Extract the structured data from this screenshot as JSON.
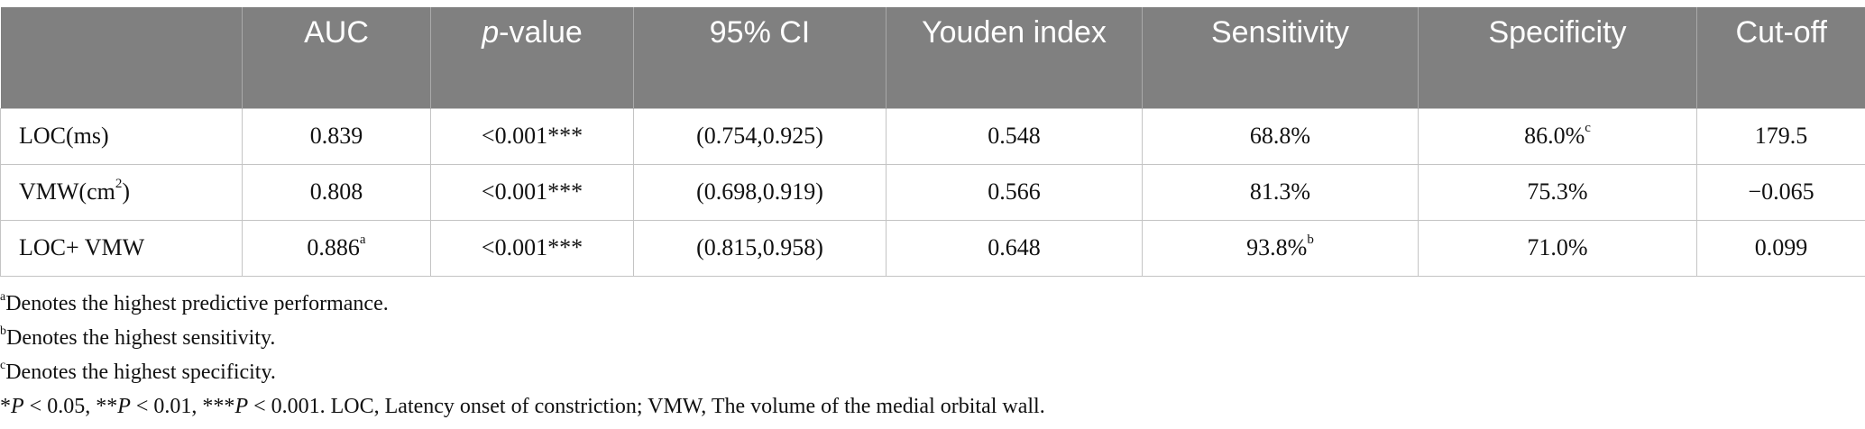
{
  "table": {
    "headers": [
      {
        "text": "",
        "italic_prefix": ""
      },
      {
        "text": "AUC",
        "italic_prefix": ""
      },
      {
        "text": "-value",
        "italic_prefix": "p"
      },
      {
        "text": "95% CI",
        "italic_prefix": ""
      },
      {
        "text": "Youden index",
        "italic_prefix": ""
      },
      {
        "text": "Sensitivity",
        "italic_prefix": ""
      },
      {
        "text": "Specificity",
        "italic_prefix": ""
      },
      {
        "text": "Cut-off",
        "italic_prefix": ""
      }
    ],
    "rows": [
      {
        "label": "LOC(ms)",
        "label_sup": "",
        "cells": [
          {
            "value": "0.839",
            "sup": ""
          },
          {
            "value": "<0.001***",
            "sup": ""
          },
          {
            "value": "(0.754,0.925)",
            "sup": ""
          },
          {
            "value": "0.548",
            "sup": ""
          },
          {
            "value": "68.8%",
            "sup": ""
          },
          {
            "value": "86.0%",
            "sup": "c"
          },
          {
            "value": "179.5",
            "sup": ""
          }
        ]
      },
      {
        "label": "VMW(cm",
        "label_sup": "2",
        "label_suffix": ")",
        "cells": [
          {
            "value": "0.808",
            "sup": ""
          },
          {
            "value": "<0.001***",
            "sup": ""
          },
          {
            "value": "(0.698,0.919)",
            "sup": ""
          },
          {
            "value": "0.566",
            "sup": ""
          },
          {
            "value": "81.3%",
            "sup": ""
          },
          {
            "value": "75.3%",
            "sup": ""
          },
          {
            "value": "−0.065",
            "sup": ""
          }
        ]
      },
      {
        "label": "LOC+ VMW",
        "label_sup": "",
        "cells": [
          {
            "value": "0.886",
            "sup": "a"
          },
          {
            "value": "<0.001***",
            "sup": ""
          },
          {
            "value": "(0.815,0.958)",
            "sup": ""
          },
          {
            "value": "0.648",
            "sup": ""
          },
          {
            "value": "93.8%",
            "sup": "b"
          },
          {
            "value": "71.0%",
            "sup": ""
          },
          {
            "value": "0.099",
            "sup": ""
          }
        ]
      }
    ]
  },
  "footnotes": {
    "a": {
      "mark": "a",
      "text": "Denotes the highest predictive performance."
    },
    "b": {
      "mark": "b",
      "text": "Denotes the highest sensitivity."
    },
    "c": {
      "mark": "c",
      "text": "Denotes the highest specificity."
    },
    "significance": {
      "p1": "P",
      "t1": " < 0.05, **",
      "p2": "P",
      "t2": " < 0.01, ***",
      "p3": "P",
      "t3": " < 0.001. LOC, Latency onset of constriction; VMW, The volume of the medial orbital wall.",
      "lead": "*"
    }
  }
}
